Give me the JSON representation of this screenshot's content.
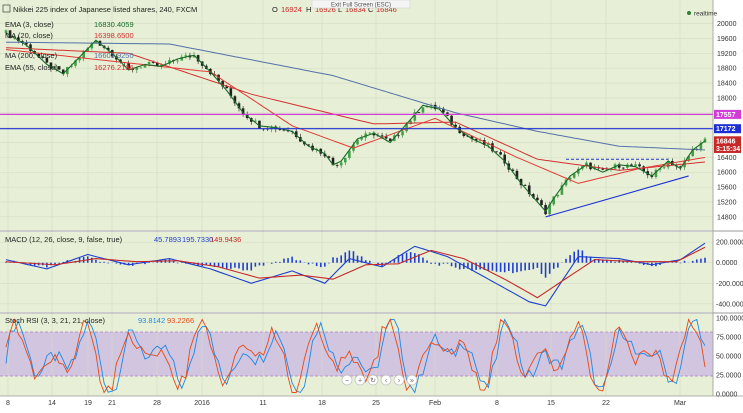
{
  "header": {
    "title": "Nikkei 225 index of Japanese listed shares, 240, FXCM",
    "ohlc": [
      {
        "key": "O",
        "value": "16924"
      },
      {
        "key": "H",
        "value": "16926"
      },
      {
        "key": "L",
        "value": "16834"
      },
      {
        "key": "C",
        "value": "16846"
      }
    ],
    "exit_fullscreen": "Exit Full Screen (ESC)",
    "realtime": "realtime"
  },
  "legend": [
    {
      "label": "EMA (3, close)",
      "value": "16830.4059",
      "color": "#1a6b2a"
    },
    {
      "label": "MA (20, close)",
      "value": "16398.6500",
      "color": "#d32f2f"
    },
    {
      "label": "MA (200, close)",
      "value": "16603.9250",
      "color": "#5470a8"
    },
    {
      "label": "EMA (55, close)",
      "value": "16276.2196",
      "color": "#d32f2f"
    }
  ],
  "price_tags": [
    {
      "value": "17557",
      "color": "#d13cd8"
    },
    {
      "value": "17172",
      "color": "#1c2fd6"
    },
    {
      "value": "16846",
      "color": "#c62828"
    },
    {
      "value": "3:15:34",
      "color": "#c62828"
    }
  ],
  "macd": {
    "label": "MACD (12, 26, close, 9, false, true)",
    "values": [
      "45.7893",
      "195.7330",
      "149.9436"
    ],
    "value_colors": [
      "#1f3fcf",
      "#1f3fcf",
      "#c62828"
    ],
    "yticks": [
      "200.0000",
      "0.0000",
      "-200.0000",
      "-400.0000"
    ]
  },
  "rsi": {
    "label": "Stoch RSI (3, 3, 21, 21, close)",
    "values": [
      "93.8142",
      "93.2266"
    ],
    "value_colors": [
      "#1e88e5",
      "#e64a19"
    ],
    "yticks": [
      "100.0000",
      "75.0000",
      "50.0000",
      "25.0000",
      "0.0000"
    ]
  },
  "xaxis": [
    "8",
    "14",
    "19",
    "21",
    "28",
    "2016",
    "11",
    "18",
    "25",
    "Feb",
    "8",
    "15",
    "22",
    "Mar"
  ],
  "chart_data": {
    "type": "candlestick",
    "title": "Nikkei 225 index of Japanese listed shares, 240, FXCM",
    "y_ticks": [
      14800,
      15200,
      15600,
      16000,
      16400,
      16800,
      17200,
      17600,
      18000,
      18400,
      18800,
      19200,
      19600,
      20000
    ],
    "ylim": [
      14500,
      20150
    ],
    "horizontal_lines": [
      {
        "value": 17557,
        "color": "#d13cd8"
      },
      {
        "value": 17172,
        "color": "#1c2fd6"
      }
    ],
    "close_series": [
      {
        "x": 0,
        "y": 19750
      },
      {
        "x": 5,
        "y": 19420
      },
      {
        "x": 10,
        "y": 18900
      },
      {
        "x": 14,
        "y": 18650
      },
      {
        "x": 18,
        "y": 19100
      },
      {
        "x": 22,
        "y": 19550
      },
      {
        "x": 26,
        "y": 19200
      },
      {
        "x": 30,
        "y": 18750
      },
      {
        "x": 34,
        "y": 18900
      },
      {
        "x": 38,
        "y": 18850
      },
      {
        "x": 42,
        "y": 19050
      },
      {
        "x": 46,
        "y": 19150
      },
      {
        "x": 50,
        "y": 18700
      },
      {
        "x": 54,
        "y": 18200
      },
      {
        "x": 58,
        "y": 17600
      },
      {
        "x": 62,
        "y": 17250
      },
      {
        "x": 66,
        "y": 17200
      },
      {
        "x": 70,
        "y": 17100
      },
      {
        "x": 74,
        "y": 16700
      },
      {
        "x": 78,
        "y": 16500
      },
      {
        "x": 80,
        "y": 16200
      },
      {
        "x": 82,
        "y": 16300
      },
      {
        "x": 86,
        "y": 16900
      },
      {
        "x": 90,
        "y": 17050
      },
      {
        "x": 94,
        "y": 16800
      },
      {
        "x": 98,
        "y": 17300
      },
      {
        "x": 102,
        "y": 17800
      },
      {
        "x": 106,
        "y": 17700
      },
      {
        "x": 110,
        "y": 17200
      },
      {
        "x": 114,
        "y": 16900
      },
      {
        "x": 118,
        "y": 16700
      },
      {
        "x": 122,
        "y": 16300
      },
      {
        "x": 126,
        "y": 15700
      },
      {
        "x": 130,
        "y": 15200
      },
      {
        "x": 132,
        "y": 14950
      },
      {
        "x": 134,
        "y": 15300
      },
      {
        "x": 138,
        "y": 15900
      },
      {
        "x": 142,
        "y": 16200
      },
      {
        "x": 146,
        "y": 16000
      },
      {
        "x": 150,
        "y": 16200
      },
      {
        "x": 154,
        "y": 16150
      },
      {
        "x": 158,
        "y": 15900
      },
      {
        "x": 162,
        "y": 16300
      },
      {
        "x": 165,
        "y": 16100
      },
      {
        "x": 168,
        "y": 16600
      },
      {
        "x": 171,
        "y": 16846
      }
    ],
    "ma200": [
      {
        "x": 0,
        "y": 19500
      },
      {
        "x": 40,
        "y": 19450
      },
      {
        "x": 80,
        "y": 18600
      },
      {
        "x": 110,
        "y": 17600
      },
      {
        "x": 130,
        "y": 17100
      },
      {
        "x": 150,
        "y": 16700
      },
      {
        "x": 171,
        "y": 16600
      }
    ],
    "ema55": [
      {
        "x": 0,
        "y": 19350
      },
      {
        "x": 30,
        "y": 19200
      },
      {
        "x": 60,
        "y": 18100
      },
      {
        "x": 90,
        "y": 17300
      },
      {
        "x": 110,
        "y": 17350
      },
      {
        "x": 130,
        "y": 16350
      },
      {
        "x": 150,
        "y": 16050
      },
      {
        "x": 171,
        "y": 16276
      }
    ],
    "ma20": [
      {
        "x": 0,
        "y": 19300
      },
      {
        "x": 25,
        "y": 19000
      },
      {
        "x": 50,
        "y": 18700
      },
      {
        "x": 70,
        "y": 17250
      },
      {
        "x": 85,
        "y": 16650
      },
      {
        "x": 105,
        "y": 17450
      },
      {
        "x": 125,
        "y": 16400
      },
      {
        "x": 140,
        "y": 15700
      },
      {
        "x": 155,
        "y": 16100
      },
      {
        "x": 171,
        "y": 16398
      }
    ],
    "trendlines": [
      {
        "from": {
          "x": 132,
          "y": 14800
        },
        "to": {
          "x": 167,
          "y": 15900
        },
        "color": "#1c2fd6",
        "dashed": false
      },
      {
        "from": {
          "x": 137,
          "y": 16350
        },
        "to": {
          "x": 162,
          "y": 16350
        },
        "color": "#1c2fd6",
        "dashed": true
      }
    ]
  }
}
